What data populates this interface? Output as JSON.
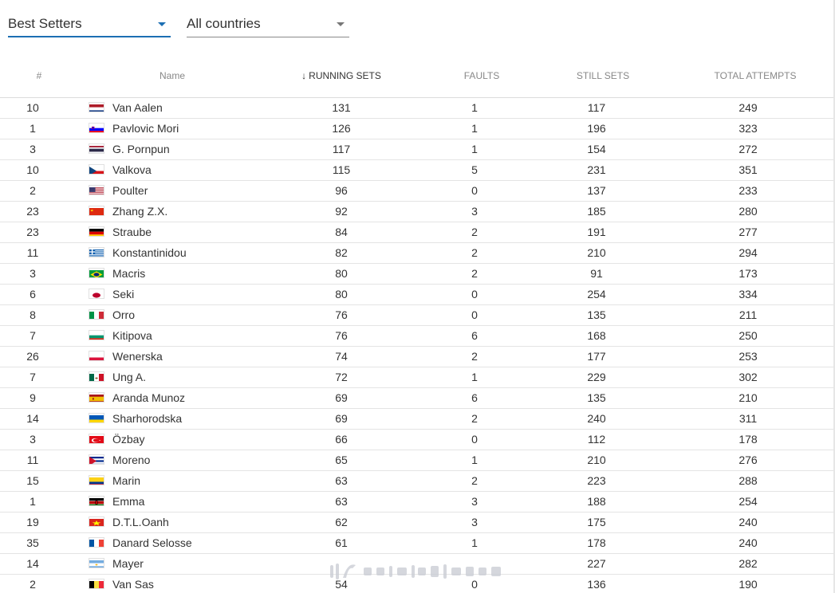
{
  "filters": {
    "stat_select": {
      "value": "Best Setters"
    },
    "country_select": {
      "value": "All countries"
    }
  },
  "table": {
    "headers": {
      "rank": "#",
      "name": "Name",
      "running_sets": "RUNNING SETS",
      "faults": "FAULTS",
      "still_sets": "STILL SETS",
      "total_attempts": "TOTAL ATTEMPTS"
    },
    "sort_icon": "arrow-down-icon",
    "rows": [
      {
        "rank": "10",
        "country": "Netherlands",
        "name": "Van Aalen",
        "running_sets": "131",
        "faults": "1",
        "still_sets": "117",
        "total_attempts": "249"
      },
      {
        "rank": "1",
        "country": "Slovenia",
        "name": "Pavlovic Mori",
        "running_sets": "126",
        "faults": "1",
        "still_sets": "196",
        "total_attempts": "323"
      },
      {
        "rank": "3",
        "country": "Thailand",
        "name": "G. Pornpun",
        "running_sets": "117",
        "faults": "1",
        "still_sets": "154",
        "total_attempts": "272"
      },
      {
        "rank": "10",
        "country": "Czechia",
        "name": "Valkova",
        "running_sets": "115",
        "faults": "5",
        "still_sets": "231",
        "total_attempts": "351"
      },
      {
        "rank": "2",
        "country": "USA",
        "name": "Poulter",
        "running_sets": "96",
        "faults": "0",
        "still_sets": "137",
        "total_attempts": "233"
      },
      {
        "rank": "23",
        "country": "China",
        "name": "Zhang Z.X.",
        "running_sets": "92",
        "faults": "3",
        "still_sets": "185",
        "total_attempts": "280"
      },
      {
        "rank": "23",
        "country": "Germany",
        "name": "Straube",
        "running_sets": "84",
        "faults": "2",
        "still_sets": "191",
        "total_attempts": "277"
      },
      {
        "rank": "11",
        "country": "Greece",
        "name": "Konstantinidou",
        "running_sets": "82",
        "faults": "2",
        "still_sets": "210",
        "total_attempts": "294"
      },
      {
        "rank": "3",
        "country": "Brazil",
        "name": "Macris",
        "running_sets": "80",
        "faults": "2",
        "still_sets": "91",
        "total_attempts": "173"
      },
      {
        "rank": "6",
        "country": "Japan",
        "name": "Seki",
        "running_sets": "80",
        "faults": "0",
        "still_sets": "254",
        "total_attempts": "334"
      },
      {
        "rank": "8",
        "country": "Italy",
        "name": "Orro",
        "running_sets": "76",
        "faults": "0",
        "still_sets": "135",
        "total_attempts": "211"
      },
      {
        "rank": "7",
        "country": "Bulgaria",
        "name": "Kitipova",
        "running_sets": "76",
        "faults": "6",
        "still_sets": "168",
        "total_attempts": "250"
      },
      {
        "rank": "26",
        "country": "Poland",
        "name": "Wenerska",
        "running_sets": "74",
        "faults": "2",
        "still_sets": "177",
        "total_attempts": "253"
      },
      {
        "rank": "7",
        "country": "Mexico",
        "name": "Ung A.",
        "running_sets": "72",
        "faults": "1",
        "still_sets": "229",
        "total_attempts": "302"
      },
      {
        "rank": "9",
        "country": "Spain",
        "name": "Aranda Munoz",
        "running_sets": "69",
        "faults": "6",
        "still_sets": "135",
        "total_attempts": "210"
      },
      {
        "rank": "14",
        "country": "Ukraine",
        "name": "Sharhorodska",
        "running_sets": "69",
        "faults": "2",
        "still_sets": "240",
        "total_attempts": "311"
      },
      {
        "rank": "3",
        "country": "Turkey",
        "name": "Özbay",
        "running_sets": "66",
        "faults": "0",
        "still_sets": "112",
        "total_attempts": "178"
      },
      {
        "rank": "11",
        "country": "Cuba",
        "name": "Moreno",
        "running_sets": "65",
        "faults": "1",
        "still_sets": "210",
        "total_attempts": "276"
      },
      {
        "rank": "15",
        "country": "Colombia",
        "name": "Marin",
        "running_sets": "63",
        "faults": "2",
        "still_sets": "223",
        "total_attempts": "288"
      },
      {
        "rank": "1",
        "country": "Kenya",
        "name": "Emma",
        "running_sets": "63",
        "faults": "3",
        "still_sets": "188",
        "total_attempts": "254"
      },
      {
        "rank": "19",
        "country": "Vietnam",
        "name": "D.T.L.Oanh",
        "running_sets": "62",
        "faults": "3",
        "still_sets": "175",
        "total_attempts": "240"
      },
      {
        "rank": "35",
        "country": "France",
        "name": "Danard Selosse",
        "running_sets": "61",
        "faults": "1",
        "still_sets": "178",
        "total_attempts": "240"
      },
      {
        "rank": "14",
        "country": "Argentina",
        "name": "Mayer",
        "running_sets": "",
        "faults": "",
        "still_sets": "227",
        "total_attempts": "282"
      },
      {
        "rank": "2",
        "country": "Belgium",
        "name": "Van Sas",
        "running_sets": "54",
        "faults": "0",
        "still_sets": "136",
        "total_attempts": "190"
      }
    ]
  },
  "colors": {
    "accent": "#1c6fb3",
    "row_border": "#e4e4e4",
    "header_text": "#888888"
  }
}
